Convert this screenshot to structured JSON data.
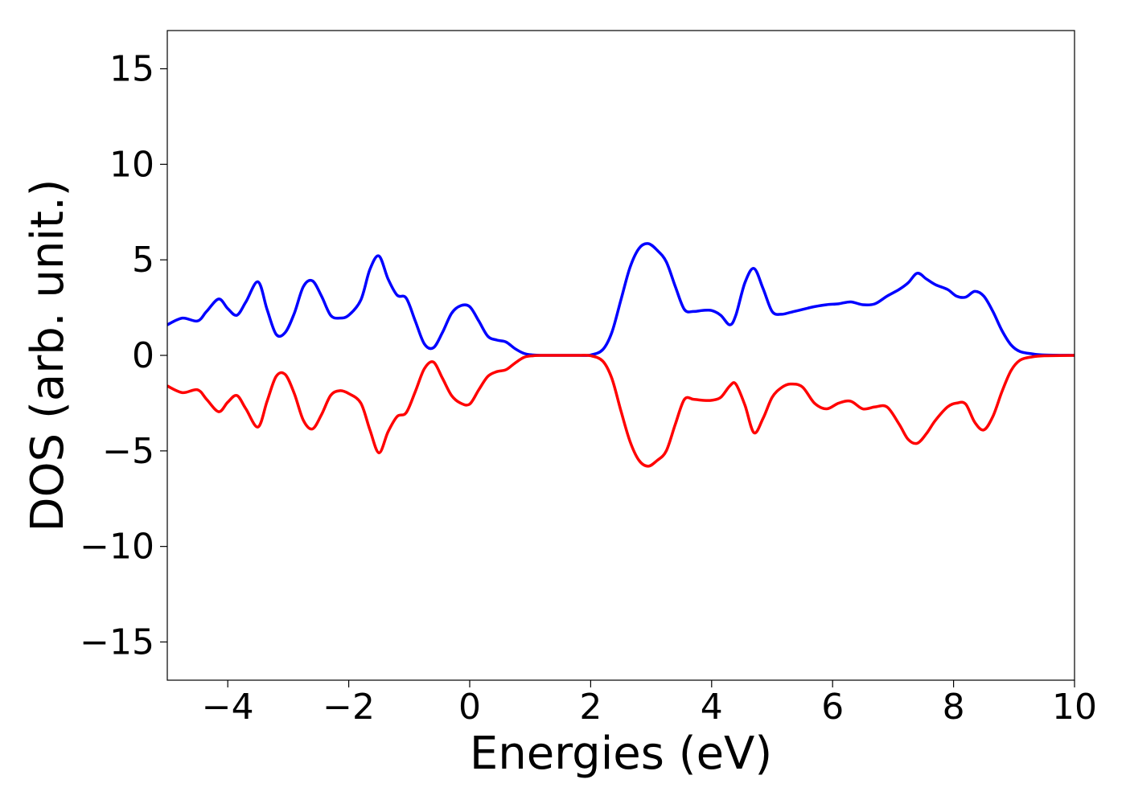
{
  "chart_data": {
    "type": "line",
    "title": "",
    "xlabel": "Energies (eV)",
    "ylabel": "DOS (arb. unit.)",
    "xlim": [
      -5,
      10
    ],
    "ylim": [
      -17,
      17
    ],
    "grid": false,
    "legend": "none",
    "xticks": [
      -4,
      -2,
      0,
      2,
      4,
      6,
      8,
      10
    ],
    "xtick_labels": [
      "−4",
      "−2",
      "0",
      "2",
      "4",
      "6",
      "8",
      "10"
    ],
    "yticks": [
      -15,
      -10,
      -5,
      0,
      5,
      10,
      15
    ],
    "ytick_labels": [
      "−15",
      "−10",
      "−5",
      "0",
      "5",
      "10",
      "15"
    ],
    "series": [
      {
        "color": "#0000ff",
        "x": [
          -5.0,
          -4.75,
          -4.5,
          -4.35,
          -4.15,
          -4.0,
          -3.85,
          -3.7,
          -3.5,
          -3.35,
          -3.2,
          -3.05,
          -2.9,
          -2.75,
          -2.6,
          -2.45,
          -2.3,
          -2.15,
          -2.0,
          -1.8,
          -1.65,
          -1.5,
          -1.35,
          -1.2,
          -1.05,
          -0.9,
          -0.75,
          -0.6,
          -0.45,
          -0.3,
          -0.15,
          0.0,
          0.15,
          0.3,
          0.45,
          0.6,
          0.75,
          0.9,
          1.05,
          1.2,
          1.5,
          1.8,
          2.0,
          2.2,
          2.35,
          2.5,
          2.65,
          2.8,
          2.95,
          3.1,
          3.25,
          3.4,
          3.55,
          3.7,
          3.85,
          4.0,
          4.15,
          4.3,
          4.4,
          4.55,
          4.7,
          4.85,
          5.0,
          5.15,
          5.3,
          5.5,
          5.7,
          5.9,
          6.1,
          6.3,
          6.5,
          6.7,
          6.9,
          7.1,
          7.25,
          7.4,
          7.55,
          7.7,
          7.9,
          8.05,
          8.2,
          8.35,
          8.5,
          8.65,
          8.8,
          8.95,
          9.1,
          9.3,
          9.5,
          10.0
        ],
        "y": [
          1.6,
          1.95,
          1.8,
          2.3,
          2.95,
          2.45,
          2.1,
          2.8,
          3.85,
          2.4,
          1.1,
          1.2,
          2.2,
          3.6,
          3.9,
          3.1,
          2.1,
          1.95,
          2.1,
          2.9,
          4.5,
          5.2,
          4.0,
          3.15,
          3.0,
          1.8,
          0.6,
          0.4,
          1.2,
          2.2,
          2.6,
          2.55,
          1.8,
          1.0,
          0.8,
          0.7,
          0.35,
          0.1,
          0.02,
          0.0,
          0.0,
          0.0,
          0.02,
          0.3,
          1.2,
          2.9,
          4.6,
          5.6,
          5.85,
          5.5,
          4.9,
          3.6,
          2.4,
          2.3,
          2.35,
          2.35,
          2.1,
          1.6,
          2.1,
          3.8,
          4.55,
          3.5,
          2.3,
          2.15,
          2.25,
          2.4,
          2.55,
          2.65,
          2.7,
          2.8,
          2.65,
          2.7,
          3.1,
          3.45,
          3.8,
          4.3,
          4.0,
          3.7,
          3.45,
          3.1,
          3.05,
          3.35,
          3.1,
          2.3,
          1.3,
          0.55,
          0.2,
          0.08,
          0.02,
          0.0
        ]
      },
      {
        "color": "#ff0000",
        "x": [
          -5.0,
          -4.75,
          -4.5,
          -4.35,
          -4.15,
          -4.0,
          -3.85,
          -3.7,
          -3.5,
          -3.35,
          -3.2,
          -3.05,
          -2.9,
          -2.75,
          -2.6,
          -2.45,
          -2.3,
          -2.15,
          -2.0,
          -1.8,
          -1.65,
          -1.5,
          -1.35,
          -1.2,
          -1.05,
          -0.9,
          -0.75,
          -0.6,
          -0.45,
          -0.3,
          -0.15,
          0.0,
          0.15,
          0.3,
          0.45,
          0.6,
          0.75,
          0.9,
          1.05,
          1.2,
          1.5,
          1.8,
          2.0,
          2.2,
          2.35,
          2.5,
          2.65,
          2.8,
          2.95,
          3.1,
          3.25,
          3.4,
          3.55,
          3.7,
          3.85,
          4.0,
          4.15,
          4.3,
          4.4,
          4.55,
          4.7,
          4.85,
          5.0,
          5.15,
          5.3,
          5.5,
          5.7,
          5.9,
          6.1,
          6.3,
          6.5,
          6.7,
          6.9,
          7.1,
          7.25,
          7.4,
          7.55,
          7.7,
          7.9,
          8.05,
          8.2,
          8.35,
          8.5,
          8.65,
          8.8,
          8.95,
          9.1,
          9.3,
          9.5,
          10.0
        ],
        "y": [
          -1.6,
          -1.95,
          -1.8,
          -2.3,
          -2.95,
          -2.45,
          -2.1,
          -2.8,
          -3.75,
          -2.4,
          -1.1,
          -1.0,
          -2.0,
          -3.4,
          -3.85,
          -3.1,
          -2.1,
          -1.85,
          -2.0,
          -2.5,
          -3.9,
          -5.1,
          -4.0,
          -3.2,
          -3.0,
          -1.9,
          -0.7,
          -0.35,
          -1.2,
          -2.1,
          -2.5,
          -2.55,
          -1.8,
          -1.1,
          -0.85,
          -0.75,
          -0.4,
          -0.1,
          -0.02,
          0.0,
          0.0,
          0.0,
          -0.02,
          -0.3,
          -1.2,
          -2.9,
          -4.5,
          -5.5,
          -5.8,
          -5.5,
          -5.0,
          -3.6,
          -2.3,
          -2.3,
          -2.35,
          -2.35,
          -2.2,
          -1.6,
          -1.5,
          -2.6,
          -4.05,
          -3.3,
          -2.2,
          -1.7,
          -1.5,
          -1.65,
          -2.5,
          -2.8,
          -2.5,
          -2.4,
          -2.8,
          -2.7,
          -2.7,
          -3.6,
          -4.4,
          -4.6,
          -4.1,
          -3.4,
          -2.7,
          -2.5,
          -2.55,
          -3.5,
          -3.9,
          -3.2,
          -1.9,
          -0.8,
          -0.25,
          -0.08,
          -0.02,
          0.0
        ]
      }
    ]
  }
}
